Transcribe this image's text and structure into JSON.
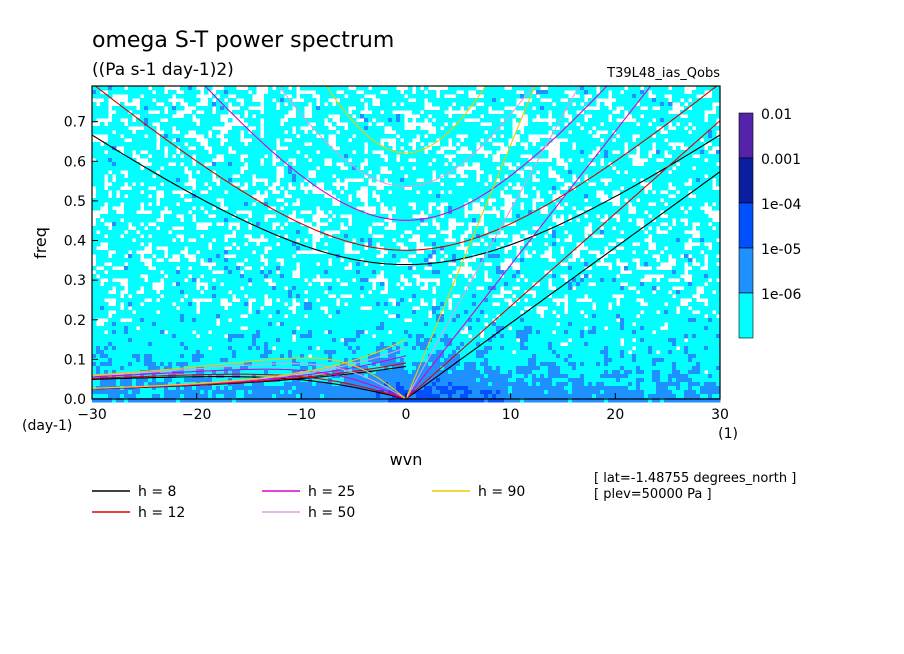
{
  "chart_data": {
    "type": "heatmap",
    "title": "omega S-T power spectrum",
    "subtitle": "((Pa s-1 day-1)2)",
    "run_label": "T39L48_ias_Qobs",
    "xlabel": "wvn",
    "ylabel": "freq",
    "x_unit": "(1)",
    "y_unit": "(day-1)",
    "xlim": [
      -30,
      30
    ],
    "ylim": [
      0,
      0.79
    ],
    "xticks": [
      "-30",
      "-20",
      "-10",
      "0",
      "10",
      "20",
      "30"
    ],
    "yticks": [
      "0.0",
      "0.1",
      "0.2",
      "0.3",
      "0.4",
      "0.5",
      "0.6",
      "0.7"
    ],
    "colorbar": {
      "levels": [
        "0.01",
        "0.001",
        "1e-04",
        "1e-05",
        "1e-06"
      ],
      "colors": [
        "#5522aa",
        "#0a1ea0",
        "#0050ff",
        "#1e90ff",
        "#00ffff"
      ]
    },
    "dispersion_curves": [
      {
        "label": "h =  8",
        "h": 8,
        "color": "#000000"
      },
      {
        "label": "h = 12",
        "h": 12,
        "color": "#dd0000"
      },
      {
        "label": "h = 25",
        "h": 25,
        "color": "#dd00cc"
      },
      {
        "label": "h = 50",
        "h": 50,
        "color": "#dda0dd"
      },
      {
        "label": "h = 90",
        "h": 90,
        "color": "#eecc00"
      }
    ],
    "info_lines": [
      "[ lat=-1.48755 degrees_north ]",
      "[ plev=50000 Pa ]"
    ]
  }
}
